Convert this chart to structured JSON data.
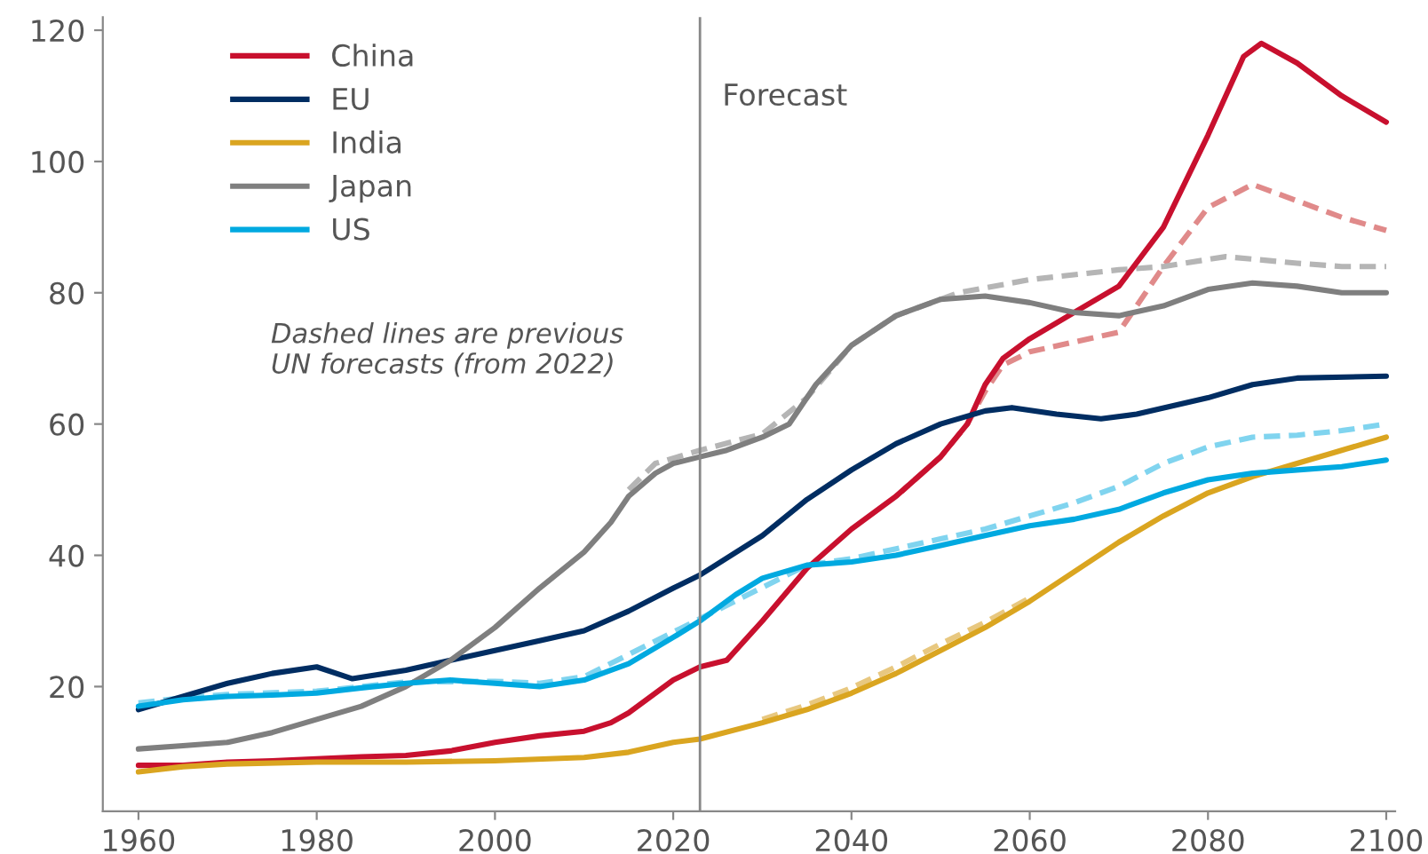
{
  "chart_data": {
    "type": "line",
    "xlim": [
      1956,
      2101
    ],
    "ylim": [
      1,
      122
    ],
    "xticks": [
      1960,
      1980,
      2000,
      2020,
      2040,
      2060,
      2080,
      2100
    ],
    "yticks": [
      20,
      40,
      60,
      80,
      100,
      120
    ],
    "grid": false,
    "legend": "top left",
    "marker": "none",
    "ref_lines": [
      {
        "axis": "x",
        "value": 2023,
        "label": "Forecast",
        "color": "#888888"
      }
    ],
    "annotations": [
      "Dashed lines are previous\nUN forecasts (from 2022)"
    ],
    "series": [
      {
        "color": "#e08a8a",
        "line_style": "dashed",
        "x": [
          2045,
          2050,
          2053,
          2055,
          2057,
          2060,
          2065,
          2070,
          2075,
          2080,
          2085,
          2090,
          2095,
          2100
        ],
        "values": [
          49,
          55,
          60,
          65,
          69,
          71,
          72.5,
          74,
          84,
          93,
          96.5,
          94,
          91.5,
          89.5
        ]
      },
      {
        "color": "#b5b5b5",
        "line_style": "dashed",
        "x": [
          2015,
          2018,
          2023,
          2030,
          2035,
          2040,
          2045,
          2052,
          2060,
          2070,
          2075,
          2082,
          2090,
          2095,
          2100
        ],
        "values": [
          50,
          54,
          56,
          58.5,
          64,
          72,
          76.5,
          80,
          82,
          83.5,
          84,
          85.5,
          84.5,
          84,
          84
        ]
      },
      {
        "color": "#80d4ef",
        "line_style": "dashed",
        "x": [
          1960,
          1965,
          1970,
          1980,
          1990,
          2000,
          2005,
          2010,
          2035,
          2040,
          2045,
          2050,
          2055,
          2060,
          2065,
          2070,
          2075,
          2080,
          2085,
          2090,
          2095,
          2100
        ],
        "values": [
          17.5,
          18.3,
          18.8,
          19.3,
          20.7,
          20.8,
          20.5,
          21.5,
          38.5,
          39.5,
          41,
          42.5,
          44,
          46,
          48,
          50.5,
          54,
          56.5,
          58,
          58.3,
          59,
          60
        ]
      },
      {
        "color": "#e8c880",
        "line_style": "dashed",
        "x": [
          2030,
          2035,
          2040,
          2045,
          2050,
          2055,
          2060
        ],
        "values": [
          15,
          17.2,
          19.8,
          23,
          26.5,
          29.8,
          33.5
        ]
      },
      {
        "name": "China",
        "color": "#c8102e",
        "line_style": "solid",
        "x": [
          1960,
          1965,
          1970,
          1975,
          1980,
          1985,
          1990,
          1995,
          2000,
          2005,
          2010,
          2013,
          2015,
          2020,
          2023,
          2026,
          2030,
          2035,
          2040,
          2045,
          2050,
          2053,
          2055,
          2057,
          2060,
          2065,
          2070,
          2075,
          2080,
          2084,
          2086,
          2090,
          2095,
          2100
        ],
        "values": [
          8,
          8,
          8.5,
          8.7,
          9,
          9.3,
          9.5,
          10.2,
          11.5,
          12.5,
          13.2,
          14.5,
          16,
          21,
          23,
          24,
          30,
          38,
          44,
          49,
          55,
          60,
          66,
          70,
          73,
          77,
          81,
          90,
          104,
          116,
          118,
          115,
          110,
          106
        ]
      },
      {
        "name": "EU",
        "color": "#002d62",
        "line_style": "solid",
        "x": [
          1960,
          1965,
          1970,
          1975,
          1980,
          1984,
          1990,
          1995,
          2000,
          2005,
          2010,
          2015,
          2020,
          2023,
          2030,
          2035,
          2040,
          2045,
          2050,
          2055,
          2058,
          2063,
          2068,
          2072,
          2080,
          2085,
          2090,
          2100
        ],
        "values": [
          16.5,
          18.5,
          20.5,
          22,
          23,
          21.2,
          22.5,
          24,
          25.5,
          27,
          28.5,
          31.5,
          35,
          37,
          43,
          48.5,
          53,
          57,
          60,
          62,
          62.5,
          61.5,
          60.8,
          61.5,
          64,
          66,
          67,
          67.3
        ]
      },
      {
        "name": "India",
        "color": "#daa520",
        "line_style": "solid",
        "x": [
          1960,
          1965,
          1970,
          1980,
          1990,
          2000,
          2010,
          2015,
          2020,
          2023,
          2030,
          2035,
          2040,
          2045,
          2050,
          2055,
          2060,
          2065,
          2070,
          2075,
          2080,
          2085,
          2090,
          2095,
          2100
        ],
        "values": [
          7,
          7.8,
          8.2,
          8.5,
          8.5,
          8.7,
          9.2,
          10,
          11.5,
          12,
          14.5,
          16.5,
          19,
          22,
          25.5,
          29,
          33,
          37.5,
          42,
          46,
          49.5,
          52,
          54,
          56,
          58
        ]
      },
      {
        "name": "Japan",
        "color": "#7f7f7f",
        "line_style": "solid",
        "x": [
          1960,
          1965,
          1970,
          1975,
          1980,
          1985,
          1990,
          1995,
          2000,
          2005,
          2010,
          2013,
          2015,
          2018,
          2020,
          2023,
          2026,
          2030,
          2033,
          2036,
          2040,
          2045,
          2050,
          2055,
          2060,
          2065,
          2070,
          2075,
          2080,
          2085,
          2090,
          2095,
          2100
        ],
        "values": [
          10.5,
          11,
          11.5,
          13,
          15,
          17,
          20,
          24,
          29,
          35,
          40.5,
          45,
          49,
          52.5,
          54,
          55,
          56,
          58,
          60,
          66,
          72,
          76.5,
          79,
          79.5,
          78.5,
          77,
          76.5,
          78,
          80.5,
          81.5,
          81,
          80,
          80
        ]
      },
      {
        "name": "US",
        "color": "#00a9e0",
        "line_style": "solid",
        "x": [
          1960,
          1965,
          1970,
          1975,
          1980,
          1985,
          1990,
          1995,
          2000,
          2005,
          2010,
          2015,
          2020,
          2023,
          2027,
          2030,
          2035,
          2040,
          2045,
          2050,
          2055,
          2060,
          2065,
          2070,
          2075,
          2080,
          2085,
          2090,
          2095,
          2100
        ],
        "values": [
          17,
          18,
          18.5,
          18.7,
          19,
          19.8,
          20.5,
          21,
          20.5,
          20,
          21,
          23.5,
          27.5,
          30,
          34,
          36.5,
          38.5,
          39,
          40,
          41.5,
          43,
          44.5,
          45.5,
          47,
          49.5,
          51.5,
          52.5,
          53,
          53.5,
          54.5
        ]
      }
    ]
  }
}
